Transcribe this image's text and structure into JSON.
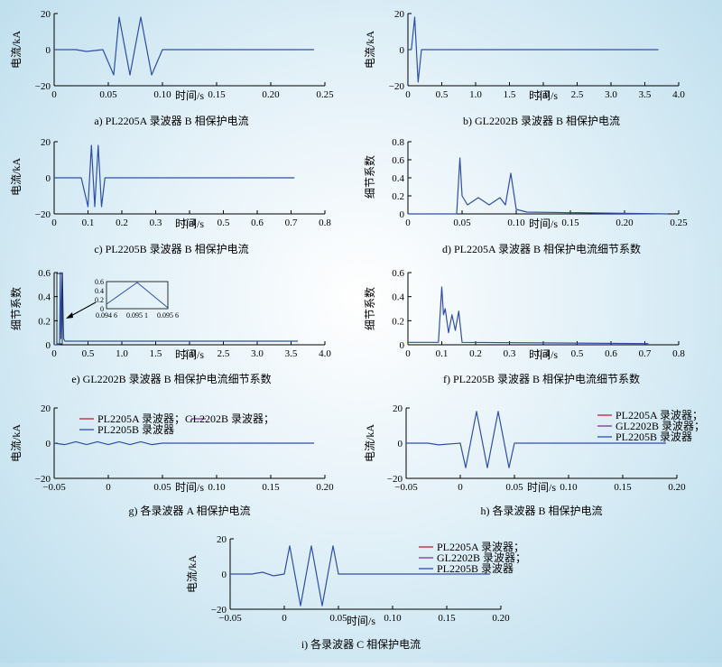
{
  "figure": {
    "colors": {
      "series": "#2f4fa5",
      "red": "#c0304a",
      "purple": "#8a3fa6",
      "blue": "#3a55c0"
    }
  },
  "chart_data": [
    {
      "id": "a",
      "type": "line",
      "caption": "a) PL2205A 录波器 B 相保护电流",
      "xlabel": "时间/s",
      "ylabel": "电流/kA",
      "xlim": [
        0,
        0.25
      ],
      "ylim": [
        -20,
        20
      ],
      "xticks": [
        0,
        0.05,
        0.1,
        0.15,
        0.2,
        0.25
      ],
      "xtick_labels": [
        "0",
        "0.05",
        "0.10",
        "0.15",
        "0.20",
        "0.25"
      ],
      "yticks": [
        -20,
        0,
        20
      ],
      "ytick_labels": [
        "−20",
        "0",
        "20"
      ],
      "series": [
        {
          "x": [
            0,
            0.02,
            0.03,
            0.045,
            0.055,
            0.06,
            0.07,
            0.08,
            0.09,
            0.1,
            0.24
          ],
          "y": [
            0,
            0,
            -1,
            0,
            -14,
            18,
            -14,
            18,
            -14,
            0,
            0
          ]
        }
      ]
    },
    {
      "id": "b",
      "type": "line",
      "caption": "b) GL2202B 录波器 B 相保护电流",
      "xlabel": "时间/s",
      "ylabel": "电流/kA",
      "xlim": [
        0,
        4.0
      ],
      "ylim": [
        -20,
        20
      ],
      "xticks": [
        0,
        0.5,
        1.0,
        1.5,
        2.0,
        2.5,
        3.0,
        3.5,
        4.0
      ],
      "xtick_labels": [
        "0",
        "0.5",
        "1.0",
        "1.5",
        "2.0",
        "2.5",
        "3.0",
        "3.5",
        "4.0"
      ],
      "yticks": [
        -20,
        0,
        20
      ],
      "ytick_labels": [
        "−20",
        "0",
        "20"
      ],
      "series": [
        {
          "x": [
            0,
            0.05,
            0.1,
            0.15,
            0.2,
            3.7
          ],
          "y": [
            0,
            0,
            18,
            -18,
            0,
            0
          ]
        }
      ]
    },
    {
      "id": "c",
      "type": "line",
      "caption": "c) PL2205B 录波器 B 相保护电流",
      "xlabel": "时间/s",
      "ylabel": "电流/kA",
      "xlim": [
        0,
        0.8
      ],
      "ylim": [
        -20,
        20
      ],
      "xticks": [
        0,
        0.1,
        0.2,
        0.3,
        0.4,
        0.5,
        0.6,
        0.7,
        0.8
      ],
      "xtick_labels": [
        "0",
        "0.1",
        "0.2",
        "0.3",
        "0.4",
        "0.5",
        "0.6",
        "0.7",
        "0.8"
      ],
      "yticks": [
        -20,
        0,
        20
      ],
      "ytick_labels": [
        "−20",
        "0",
        "20"
      ],
      "series": [
        {
          "x": [
            0,
            0.08,
            0.1,
            0.11,
            0.12,
            0.13,
            0.14,
            0.15,
            0.71
          ],
          "y": [
            0,
            0,
            -16,
            18,
            -16,
            18,
            -16,
            0,
            0
          ]
        }
      ]
    },
    {
      "id": "d",
      "type": "line",
      "caption": "d) PL2205A 录波器 B 相保护电流细节系数",
      "xlabel": "时间/s",
      "ylabel": "细节系数",
      "xlim": [
        0,
        0.25
      ],
      "ylim": [
        0,
        0.8
      ],
      "xticks": [
        0,
        0.05,
        0.1,
        0.15,
        0.2,
        0.25
      ],
      "xtick_labels": [
        "0",
        "0.05",
        "0.10",
        "0.15",
        "0.20",
        "0.25"
      ],
      "yticks": [
        0,
        0.2,
        0.4,
        0.6,
        0.8
      ],
      "ytick_labels": [
        "0",
        "0.2",
        "0.4",
        "0.6",
        "0.8"
      ],
      "series": [
        {
          "x": [
            0,
            0.045,
            0.048,
            0.05,
            0.055,
            0.065,
            0.075,
            0.085,
            0.09,
            0.095,
            0.1,
            0.11,
            0.24
          ],
          "y": [
            0,
            0,
            0.62,
            0.2,
            0.1,
            0.18,
            0.1,
            0.18,
            0.1,
            0.45,
            0.05,
            0.02,
            0
          ]
        }
      ]
    },
    {
      "id": "e",
      "type": "line",
      "caption": "e) GL2202B 录波器 B 相保护电流细节系数",
      "xlabel": "时间/s",
      "ylabel": "细节系数",
      "xlim": [
        0,
        4.0
      ],
      "ylim": [
        0,
        0.6
      ],
      "xticks": [
        0,
        0.5,
        1.0,
        1.5,
        2.0,
        2.5,
        3.0,
        3.5,
        4.0
      ],
      "xtick_labels": [
        "0",
        "0.5",
        "1.0",
        "1.5",
        "2.0",
        "2.5",
        "3.0",
        "3.5",
        "4.0"
      ],
      "yticks": [
        0,
        0.2,
        0.4,
        0.6
      ],
      "ytick_labels": [
        "0",
        "0.2",
        "0.4",
        "0.6"
      ],
      "series": [
        {
          "x": [
            0,
            0.08,
            0.09,
            0.1,
            0.12,
            0.14,
            0.16,
            3.6
          ],
          "y": [
            0,
            0,
            0.6,
            0.05,
            0.6,
            0.05,
            0.03,
            0.03
          ]
        }
      ],
      "inset": {
        "xlim": [
          0.0946,
          0.0956
        ],
        "ylim": [
          0,
          0.6
        ],
        "xticks": [
          0.0946,
          0.0951,
          0.0956
        ],
        "xtick_labels": [
          "0.094 6",
          "0.095 1",
          "0.095 6"
        ],
        "yticks": [
          0,
          0.2,
          0.4,
          0.6
        ],
        "ytick_labels": [
          "0",
          "0.2",
          "0.4",
          "0.6"
        ],
        "x": [
          0.0946,
          0.0951,
          0.0956
        ],
        "y": [
          0.1,
          0.58,
          0.02
        ]
      }
    },
    {
      "id": "f",
      "type": "line",
      "caption": "f) PL2205B 录波器 B 相保护电流细节系数",
      "xlabel": "时间/s",
      "ylabel": "细节系数",
      "xlim": [
        0,
        0.8
      ],
      "ylim": [
        0,
        0.6
      ],
      "xticks": [
        0,
        0.1,
        0.2,
        0.3,
        0.4,
        0.5,
        0.6,
        0.7,
        0.8
      ],
      "xtick_labels": [
        "0",
        "0.1",
        "0.2",
        "0.3",
        "0.4",
        "0.5",
        "0.6",
        "0.7",
        "0.8"
      ],
      "yticks": [
        0,
        0.2,
        0.4,
        0.6
      ],
      "ytick_labels": [
        "0",
        "0.2",
        "0.4",
        "0.6"
      ],
      "series": [
        {
          "x": [
            0,
            0.09,
            0.1,
            0.105,
            0.11,
            0.12,
            0.13,
            0.14,
            0.15,
            0.16,
            0.71
          ],
          "y": [
            0.02,
            0.02,
            0.48,
            0.25,
            0.3,
            0.1,
            0.25,
            0.12,
            0.28,
            0.02,
            0.01
          ]
        }
      ]
    },
    {
      "id": "g",
      "type": "line",
      "caption": "g) 各录波器 A 相保护电流",
      "xlabel": "时间/s",
      "ylabel": "电流/kA",
      "xlim": [
        -0.05,
        0.2
      ],
      "ylim": [
        -20,
        20
      ],
      "xticks": [
        -0.05,
        0,
        0.05,
        0.1,
        0.15,
        0.2
      ],
      "xtick_labels": [
        "−0.05",
        "0",
        "0.05",
        "0.10",
        "0.15",
        "0.20"
      ],
      "yticks": [
        -20,
        0,
        20
      ],
      "ytick_labels": [
        "−20",
        "0",
        "20"
      ],
      "legend_lines": [
        "PL2205A 录波器；GL2202B 录波器；",
        "PL2205B 录波器"
      ],
      "series": [
        {
          "x": [
            -0.05,
            -0.04,
            -0.03,
            -0.02,
            -0.01,
            0,
            0.01,
            0.02,
            0.03,
            0.04,
            0.05,
            0.19
          ],
          "y": [
            0,
            -0.8,
            0.8,
            -0.8,
            0.8,
            -0.8,
            0.8,
            -0.8,
            0.8,
            -0.8,
            0,
            0
          ]
        }
      ]
    },
    {
      "id": "h",
      "type": "line",
      "caption": "h) 各录波器 B 相保护电流",
      "xlabel": "时间/s",
      "ylabel": "电流/kA",
      "xlim": [
        -0.05,
        0.2
      ],
      "ylim": [
        -20,
        20
      ],
      "xticks": [
        -0.05,
        0,
        0.05,
        0.1,
        0.15,
        0.2
      ],
      "xtick_labels": [
        "−0.05",
        "0",
        "0.05",
        "0.10",
        "0.15",
        "0.20"
      ],
      "yticks": [
        -20,
        0,
        20
      ],
      "ytick_labels": [
        "−20",
        "0",
        "20"
      ],
      "legend_lines": [
        "PL2205A 录波器；",
        "GL2202B 录波器；",
        "PL2205B 录波器"
      ],
      "series": [
        {
          "x": [
            -0.05,
            -0.03,
            -0.02,
            0,
            0.005,
            0.015,
            0.025,
            0.035,
            0.045,
            0.05,
            0.19
          ],
          "y": [
            0,
            0,
            -1,
            0,
            -14,
            18,
            -14,
            18,
            -14,
            0,
            0
          ]
        }
      ]
    },
    {
      "id": "i",
      "type": "line",
      "caption": "i) 各录波器 C 相保护电流",
      "xlabel": "时间/s",
      "ylabel": "电流/kA",
      "xlim": [
        -0.05,
        0.2
      ],
      "ylim": [
        -20,
        20
      ],
      "xticks": [
        -0.05,
        0,
        0.05,
        0.1,
        0.15,
        0.2
      ],
      "xtick_labels": [
        "−0.05",
        "0",
        "0.05",
        "0.10",
        "0.15",
        "0.20"
      ],
      "yticks": [
        -20,
        0,
        20
      ],
      "ytick_labels": [
        "−20",
        "0",
        "20"
      ],
      "legend_lines": [
        "PL2205A 录波器；",
        "GL2202B 录波器；",
        "PL2205B 录波器"
      ],
      "series": [
        {
          "x": [
            -0.05,
            -0.03,
            -0.02,
            -0.01,
            0,
            0.005,
            0.015,
            0.025,
            0.035,
            0.045,
            0.05,
            0.19
          ],
          "y": [
            0,
            0,
            1,
            -1,
            0,
            16,
            -18,
            16,
            -18,
            16,
            0,
            0
          ]
        }
      ]
    }
  ]
}
